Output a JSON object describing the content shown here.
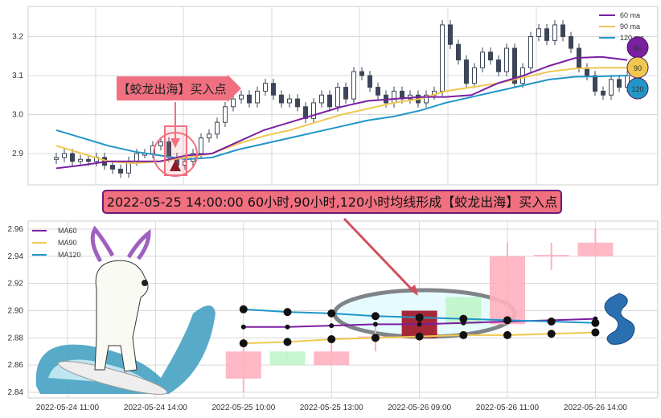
{
  "colors": {
    "ma60": "#7b1fa2",
    "ma90": "#f0c850",
    "ma120": "#2196c8",
    "candle": "#3c4658",
    "pink": "#ffb0c0",
    "green": "#c0f5c8",
    "highlight": "#a52838",
    "banner": "#f07080",
    "banner_border": "#6a1a7a"
  },
  "annotations": {
    "buy_label": "【蛟龙出海】买入点",
    "banner": "2022-05-25 14:00:00 60小时,90小时,120小时均线形成【蛟龙出海】买入点"
  },
  "badges": [
    "60",
    "90",
    "120"
  ],
  "chart_data": [
    {
      "type": "candlestick",
      "ylim": [
        2.82,
        3.27
      ],
      "yticks": [
        "2.9",
        "3.0",
        "3.1",
        "3.2"
      ],
      "grid": true,
      "legend_placement": "top-right",
      "legend": [
        "60 ma",
        "90 ma",
        "120 ma"
      ],
      "closes": [
        2.89,
        2.9,
        2.88,
        2.885,
        2.88,
        2.89,
        2.87,
        2.86,
        2.85,
        2.88,
        2.9,
        2.9,
        2.92,
        2.93,
        2.89,
        2.87,
        2.88,
        2.9,
        2.94,
        2.95,
        2.98,
        3.02,
        3.04,
        3.05,
        3.03,
        3.06,
        3.08,
        3.05,
        3.03,
        3.04,
        3.02,
        2.99,
        3.03,
        3.05,
        3.02,
        3.07,
        3.04,
        3.11,
        3.1,
        3.07,
        3.05,
        3.03,
        3.06,
        3.04,
        3.05,
        3.03,
        3.05,
        3.06,
        3.23,
        3.18,
        3.14,
        3.08,
        3.12,
        3.16,
        3.14,
        3.11,
        3.17,
        3.08,
        3.12,
        3.2,
        3.22,
        3.19,
        3.23,
        3.2,
        3.17,
        3.12,
        3.1,
        3.06,
        3.05,
        3.09,
        3.07,
        3.1
      ],
      "ma60": [
        2.862,
        2.87,
        2.88,
        2.88,
        2.88,
        2.895,
        2.9,
        2.93,
        2.96,
        2.98,
        3.0,
        3.02,
        3.035,
        3.04,
        3.045,
        3.045,
        3.05,
        3.08,
        3.1,
        3.125,
        3.145,
        3.148,
        3.14
      ],
      "ma90": [
        2.92,
        2.9,
        2.88,
        2.875,
        2.88,
        2.89,
        2.9,
        2.925,
        2.945,
        2.96,
        2.98,
        3.0,
        3.015,
        3.03,
        3.04,
        3.06,
        3.07,
        3.08,
        3.095,
        3.11,
        3.118,
        3.12,
        3.12
      ],
      "ma120": [
        2.96,
        2.94,
        2.92,
        2.905,
        2.895,
        2.885,
        2.89,
        2.91,
        2.925,
        2.94,
        2.955,
        2.97,
        2.985,
        2.995,
        3.01,
        3.03,
        3.045,
        3.06,
        3.075,
        3.09,
        3.097,
        3.098,
        3.1
      ]
    },
    {
      "type": "candlestick",
      "ylim": [
        2.835,
        2.965
      ],
      "yticks": [
        "2.84",
        "2.86",
        "2.88",
        "2.90",
        "2.92",
        "2.94",
        "2.96"
      ],
      "grid": true,
      "legend_placement": "top-left",
      "legend": [
        "MA60",
        "MA90",
        "MA120"
      ],
      "xticks": [
        "2022-05-24 11:00",
        "2022-05-24 14:00",
        "2022-05-25 10:00",
        "2022-05-25 13:00",
        "2022-05-26 09:00",
        "2022-05-26 11:00",
        "2022-05-26 14:00"
      ],
      "candles": [
        {
          "o": 2.85,
          "c": 2.87,
          "h": 2.88,
          "l": 2.84,
          "color": "pink"
        },
        {
          "o": 2.87,
          "c": 2.86,
          "h": 2.87,
          "l": 2.86,
          "color": "green"
        },
        {
          "o": 2.86,
          "c": 2.87,
          "h": 2.88,
          "l": 2.86,
          "color": "pink"
        },
        {
          "o": 2.88,
          "c": 2.881,
          "h": 2.89,
          "l": 2.87,
          "color": "pink"
        },
        {
          "o": 2.88,
          "c": 2.9,
          "h": 2.9,
          "l": 2.88,
          "color": "highlight"
        },
        {
          "o": 2.91,
          "c": 2.89,
          "h": 2.91,
          "l": 2.89,
          "color": "green"
        },
        {
          "o": 2.89,
          "c": 2.94,
          "h": 2.95,
          "l": 2.89,
          "color": "pink"
        },
        {
          "o": 2.94,
          "c": 2.941,
          "h": 2.95,
          "l": 2.93,
          "color": "pink"
        },
        {
          "o": 2.94,
          "c": 2.95,
          "h": 2.96,
          "l": 2.94,
          "color": "pink"
        }
      ],
      "ma60": [
        2.888,
        2.888,
        2.889,
        2.89,
        2.89,
        2.891,
        2.892,
        2.893,
        2.894
      ],
      "ma90": [
        2.876,
        2.877,
        2.879,
        2.88,
        2.881,
        2.882,
        2.882,
        2.883,
        2.884
      ],
      "ma120": [
        2.901,
        2.899,
        2.898,
        2.896,
        2.895,
        2.894,
        2.893,
        2.892,
        2.891
      ]
    }
  ]
}
